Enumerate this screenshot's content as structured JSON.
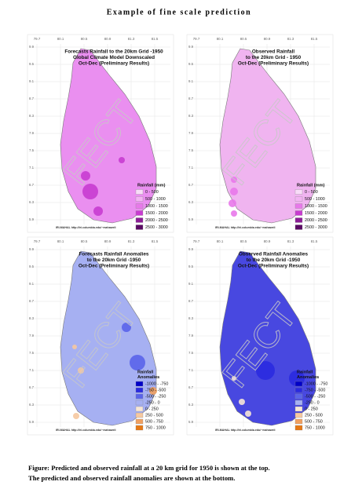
{
  "title": "Example of fine scale prediction",
  "maps": [
    {
      "title_lines": [
        "Forecasts Rainfall to the 20km Grid -1950",
        "Global Climate Model Downscaled",
        "Oct-Dec (Preliminary Results)"
      ],
      "x_labels": [
        "79.7",
        "80.1",
        "80.5",
        "80.9",
        "81.3",
        "81.5"
      ],
      "y_labels": [
        "9.9",
        "9.5",
        "9.1",
        "8.7",
        "8.3",
        "7.9",
        "7.5",
        "7.1",
        "6.7",
        "6.3",
        "5.9"
      ],
      "land_color": "#ea8ff0",
      "legend": {
        "title_lines": [
          "Rainfall (mm)"
        ],
        "entries": [
          {
            "label": "0 - 500",
            "color": "#f8dcf8"
          },
          {
            "label": "500 - 1000",
            "color": "#f2b4f2"
          },
          {
            "label": "1000 - 1500",
            "color": "#e878ea"
          },
          {
            "label": "1500 - 2000",
            "color": "#c83cd0"
          },
          {
            "label": "2000 - 2500",
            "color": "#8c1c96"
          },
          {
            "label": "2500 - 3000",
            "color": "#5a0a64"
          }
        ]
      },
      "credit": "IRI-MAHAL  http://iri.columbia.edu/~mahaweli",
      "watermark": "FECT"
    },
    {
      "title_lines": [
        "Observed Rainfall",
        "to the 20km Grid - 1950",
        "Oct-Dec (Preliminary Results)"
      ],
      "x_labels": [
        "79.7",
        "80.1",
        "80.5",
        "80.9",
        "81.3",
        "81.5"
      ],
      "y_labels": [
        "9.9",
        "9.5",
        "9.1",
        "8.7",
        "8.3",
        "7.9",
        "7.5",
        "7.1",
        "6.7",
        "6.3",
        "5.9"
      ],
      "land_color": "#f0b4f0",
      "legend": {
        "title_lines": [
          "Rainfall (mm)"
        ],
        "entries": [
          {
            "label": "0 - 500",
            "color": "#f8dcf8"
          },
          {
            "label": "500 - 1000",
            "color": "#f2b4f2"
          },
          {
            "label": "1000 - 1500",
            "color": "#e878ea"
          },
          {
            "label": "1500 - 2000",
            "color": "#c83cd0"
          },
          {
            "label": "2000 - 2500",
            "color": "#8c1c96"
          },
          {
            "label": "2500 - 3000",
            "color": "#5a0a64"
          }
        ]
      },
      "credit": "IRI-MAHAL  http://iri.columbia.edu/~mahaweli",
      "watermark": "FECT"
    },
    {
      "title_lines": [
        "Forecasts Rainfall Anomalies",
        "to the 20km Grid -1950",
        "Oct-Dec (Preliminary Results)"
      ],
      "x_labels": [
        "79.7",
        "80.1",
        "80.5",
        "80.9",
        "81.3",
        "81.5"
      ],
      "y_labels": [
        "9.9",
        "9.5",
        "9.1",
        "8.7",
        "8.3",
        "7.9",
        "7.5",
        "7.1",
        "6.7",
        "6.3",
        "5.9"
      ],
      "land_color": "#a6b0f2",
      "legend": {
        "title_lines": [
          "Rainfall",
          "Anomalies"
        ],
        "entries": [
          {
            "label": "-1000 - -750",
            "color": "#0000c8"
          },
          {
            "label": "-750 - -500",
            "color": "#2a2ae0"
          },
          {
            "label": "-500 - -250",
            "color": "#5a64ea"
          },
          {
            "label": "-250 - 0",
            "color": "#a6b0f2"
          },
          {
            "label": "0 - 250",
            "color": "#f6e6d6"
          },
          {
            "label": "250 - 500",
            "color": "#f6c8a0"
          },
          {
            "label": "500 - 750",
            "color": "#f0a060"
          },
          {
            "label": "750 - 1000",
            "color": "#e67814"
          }
        ]
      },
      "credit": "IRI-MAHAL  http://iri.columbia.edu/~mahaweli",
      "watermark": "FECT"
    },
    {
      "title_lines": [
        "Observed Rainfall Anomalies",
        "to the 20km Grid -1950",
        "Oct-Dec (Preliminary Results)"
      ],
      "x_labels": [
        "79.7",
        "80.1",
        "80.5",
        "80.9",
        "81.3",
        "81.5"
      ],
      "y_labels": [
        "9.9",
        "9.5",
        "9.1",
        "8.7",
        "8.3",
        "7.9",
        "7.5",
        "7.1",
        "6.7",
        "6.3",
        "5.9"
      ],
      "land_color": "#4848e0",
      "legend": {
        "title_lines": [
          "Rainfall",
          "Anomalies"
        ],
        "entries": [
          {
            "label": "-1000 - -750",
            "color": "#0000c8"
          },
          {
            "label": "-750 - -500",
            "color": "#2a2ae0"
          },
          {
            "label": "-500 - -250",
            "color": "#5a64ea"
          },
          {
            "label": "-250 - 0",
            "color": "#a6b0f2"
          },
          {
            "label": "0 - 250",
            "color": "#f6e6d6"
          },
          {
            "label": "250 - 500",
            "color": "#f6c8a0"
          },
          {
            "label": "500 - 750",
            "color": "#f0a060"
          },
          {
            "label": "750 - 1000",
            "color": "#e67814"
          }
        ]
      },
      "credit": "IRI-MAHAL  http://iri.columbia.edu/~mahaweli",
      "watermark": "FECT"
    }
  ],
  "caption": [
    "Figure: Predicted and observed rainfall at a 20 km grid for 1950 is shown at the top.",
    "The predicted and observed rainfall anomalies are shown at the bottom."
  ]
}
